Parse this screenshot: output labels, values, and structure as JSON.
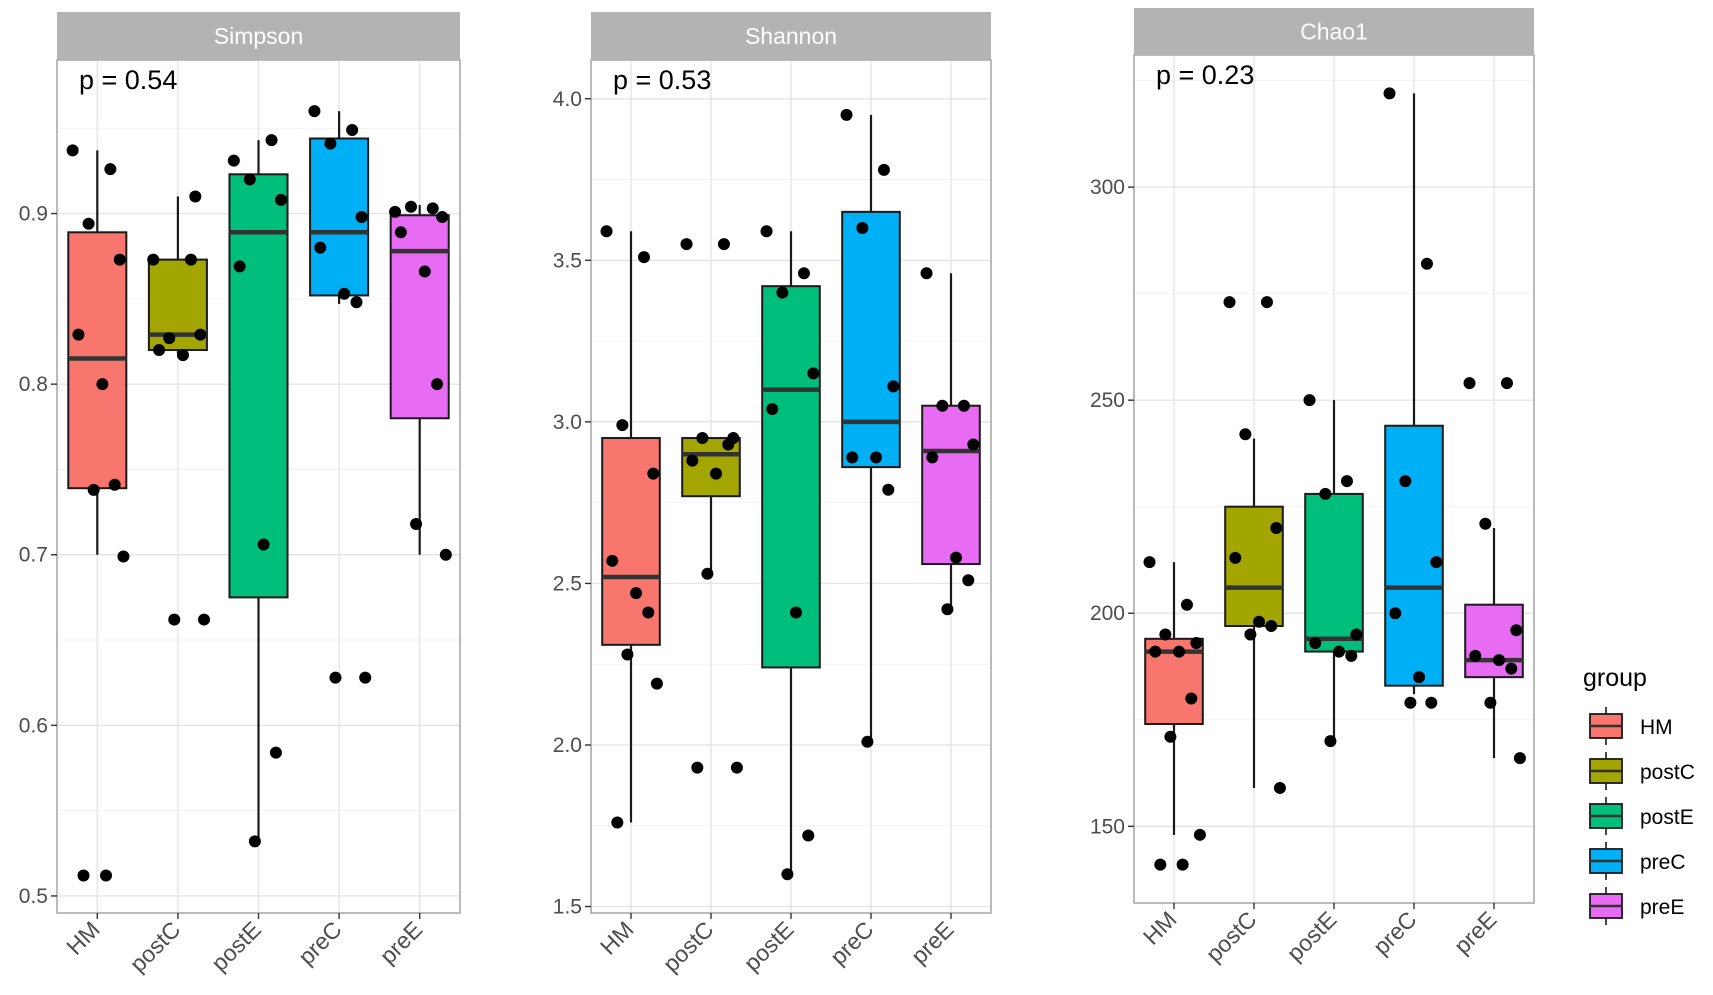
{
  "chart_data": [
    {
      "type": "box",
      "title": "Simpson",
      "annotation": "p = 0.54",
      "categories": [
        "HM",
        "postC",
        "postE",
        "preC",
        "preE"
      ],
      "ylim": [
        0.49,
        0.99
      ],
      "yticks": [
        0.5,
        0.6,
        0.7,
        0.8,
        0.9
      ],
      "ytick_labels": [
        "0.5",
        "0.6",
        "0.7",
        "0.8",
        "0.9"
      ],
      "boxes": [
        {
          "group": "HM",
          "whisker_low": 0.7,
          "q1": 0.739,
          "median": 0.815,
          "q3": 0.889,
          "whisker_high": 0.937
        },
        {
          "group": "postC",
          "whisker_low": 0.818,
          "q1": 0.82,
          "median": 0.829,
          "q3": 0.873,
          "whisker_high": 0.91
        },
        {
          "group": "postE",
          "whisker_low": 0.532,
          "q1": 0.675,
          "median": 0.889,
          "q3": 0.923,
          "whisker_high": 0.943
        },
        {
          "group": "preC",
          "whisker_low": 0.847,
          "q1": 0.852,
          "median": 0.889,
          "q3": 0.944,
          "whisker_high": 0.96
        },
        {
          "group": "preE",
          "whisker_low": 0.7,
          "q1": 0.78,
          "median": 0.878,
          "q3": 0.899,
          "whisker_high": 0.905
        }
      ],
      "points": [
        {
          "group": "HM",
          "values": [
            0.937,
            0.926,
            0.894,
            0.873,
            0.829,
            0.8,
            0.741,
            0.738,
            0.699,
            0.512,
            0.512
          ]
        },
        {
          "group": "postC",
          "values": [
            0.873,
            0.873,
            0.827,
            0.829,
            0.82,
            0.817,
            0.91,
            0.662,
            0.662
          ]
        },
        {
          "group": "postE",
          "values": [
            0.931,
            0.943,
            0.92,
            0.908,
            0.869,
            0.706,
            0.584,
            0.532
          ]
        },
        {
          "group": "preC",
          "values": [
            0.96,
            0.949,
            0.941,
            0.898,
            0.88,
            0.853,
            0.848,
            0.628,
            0.628
          ]
        },
        {
          "group": "preE",
          "values": [
            0.901,
            0.903,
            0.904,
            0.898,
            0.889,
            0.866,
            0.8,
            0.718,
            0.7
          ]
        }
      ]
    },
    {
      "type": "box",
      "title": "Shannon",
      "annotation": "p = 0.53",
      "categories": [
        "HM",
        "postC",
        "postE",
        "preC",
        "preE"
      ],
      "ylim": [
        1.48,
        4.12
      ],
      "yticks": [
        1.5,
        2.0,
        2.5,
        3.0,
        3.5,
        4.0
      ],
      "ytick_labels": [
        "1.5",
        "2.0",
        "2.5",
        "3.0",
        "3.5",
        "4.0"
      ],
      "boxes": [
        {
          "group": "HM",
          "whisker_low": 1.76,
          "q1": 2.31,
          "median": 2.52,
          "q3": 2.95,
          "whisker_high": 3.59
        },
        {
          "group": "postC",
          "whisker_low": 2.53,
          "q1": 2.77,
          "median": 2.9,
          "q3": 2.95,
          "whisker_high": 2.95
        },
        {
          "group": "postE",
          "whisker_low": 1.6,
          "q1": 2.24,
          "median": 3.1,
          "q3": 3.42,
          "whisker_high": 3.59
        },
        {
          "group": "preC",
          "whisker_low": 2.01,
          "q1": 2.86,
          "median": 3.0,
          "q3": 3.65,
          "whisker_high": 3.95
        },
        {
          "group": "preE",
          "whisker_low": 2.42,
          "q1": 2.56,
          "median": 2.91,
          "q3": 3.05,
          "whisker_high": 3.46
        }
      ],
      "points": [
        {
          "group": "HM",
          "values": [
            3.59,
            3.51,
            2.99,
            2.84,
            2.57,
            2.47,
            2.41,
            2.28,
            2.19,
            1.76
          ]
        },
        {
          "group": "postC",
          "values": [
            3.55,
            3.55,
            2.95,
            2.95,
            2.88,
            2.84,
            2.93,
            2.53,
            1.93,
            1.93
          ]
        },
        {
          "group": "postE",
          "values": [
            3.59,
            3.46,
            3.4,
            3.15,
            3.04,
            2.41,
            1.72,
            1.6
          ]
        },
        {
          "group": "preC",
          "values": [
            3.95,
            3.78,
            3.6,
            3.11,
            2.89,
            2.89,
            2.79,
            2.01
          ]
        },
        {
          "group": "preE",
          "values": [
            3.46,
            3.05,
            3.05,
            2.93,
            2.89,
            2.58,
            2.51,
            2.42
          ]
        }
      ]
    },
    {
      "type": "box",
      "title": "Chao1",
      "annotation": "p = 0.23",
      "categories": [
        "HM",
        "postC",
        "postE",
        "preC",
        "preE"
      ],
      "ylim": [
        132,
        331
      ],
      "yticks": [
        150,
        200,
        250,
        300
      ],
      "ytick_labels": [
        "150",
        "200",
        "250",
        "300"
      ],
      "boxes": [
        {
          "group": "HM",
          "whisker_low": 148,
          "q1": 174,
          "median": 191,
          "q3": 194,
          "whisker_high": 212
        },
        {
          "group": "postC",
          "whisker_low": 159,
          "q1": 197,
          "median": 206,
          "q3": 225,
          "whisker_high": 241
        },
        {
          "group": "postE",
          "whisker_low": 170,
          "q1": 191,
          "median": 194,
          "q3": 228,
          "whisker_high": 250
        },
        {
          "group": "preC",
          "whisker_low": 181,
          "q1": 183,
          "median": 206,
          "q3": 244,
          "whisker_high": 322
        },
        {
          "group": "preE",
          "whisker_low": 166,
          "q1": 185,
          "median": 189,
          "q3": 202,
          "whisker_high": 220
        }
      ],
      "points": [
        {
          "group": "HM",
          "values": [
            212,
            202,
            195,
            193,
            191,
            191,
            180,
            171,
            148,
            141,
            141
          ]
        },
        {
          "group": "postC",
          "values": [
            273,
            273,
            242,
            220,
            213,
            198,
            197,
            195,
            159
          ]
        },
        {
          "group": "postE",
          "values": [
            250,
            231,
            228,
            195,
            193,
            191,
            190,
            170
          ]
        },
        {
          "group": "preC",
          "values": [
            322,
            282,
            231,
            212,
            200,
            185,
            179,
            179
          ]
        },
        {
          "group": "preE",
          "values": [
            254,
            254,
            221,
            196,
            190,
            189,
            187,
            179,
            166
          ]
        }
      ]
    }
  ],
  "legend": {
    "title": "group",
    "entries": [
      {
        "label": "HM",
        "color": "#F8766D"
      },
      {
        "label": "postC",
        "color": "#A3A500"
      },
      {
        "label": "postE",
        "color": "#00BF7D"
      },
      {
        "label": "preC",
        "color": "#00B0F6"
      },
      {
        "label": "preE",
        "color": "#E76BF3"
      }
    ]
  },
  "colors": {
    "strip": "#b3b3b3",
    "grid_major": "#e5e5e5",
    "grid_minor": "#f2f2f2",
    "panel_border": "#b3b3b3",
    "axis_text": "#4d4d4d"
  }
}
